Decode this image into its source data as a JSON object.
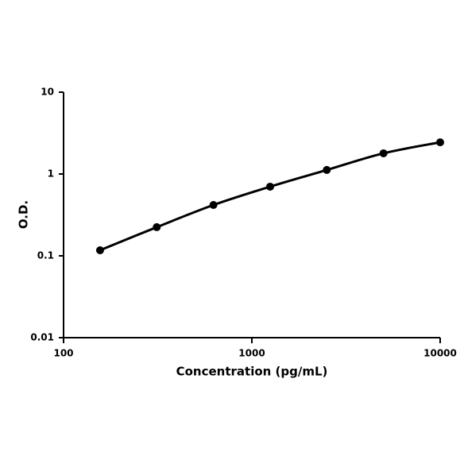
{
  "chart_data": {
    "type": "line",
    "x_label": "Concentration (pg/mL)",
    "y_label": "O.D.",
    "x": [
      156.25,
      312.5,
      625,
      1250,
      2500,
      5000,
      10000
    ],
    "values": [
      0.117,
      0.224,
      0.418,
      0.7,
      1.12,
      1.79,
      2.44
    ],
    "color": "#000000",
    "xscale": "log",
    "yscale": "log",
    "xlim": [
      100,
      10000
    ],
    "ylim": [
      0.01,
      10
    ],
    "xticks": [
      100,
      1000,
      10000
    ],
    "yticks": [
      0.01,
      0.1,
      1,
      10
    ],
    "grid": false,
    "markers": true
  }
}
